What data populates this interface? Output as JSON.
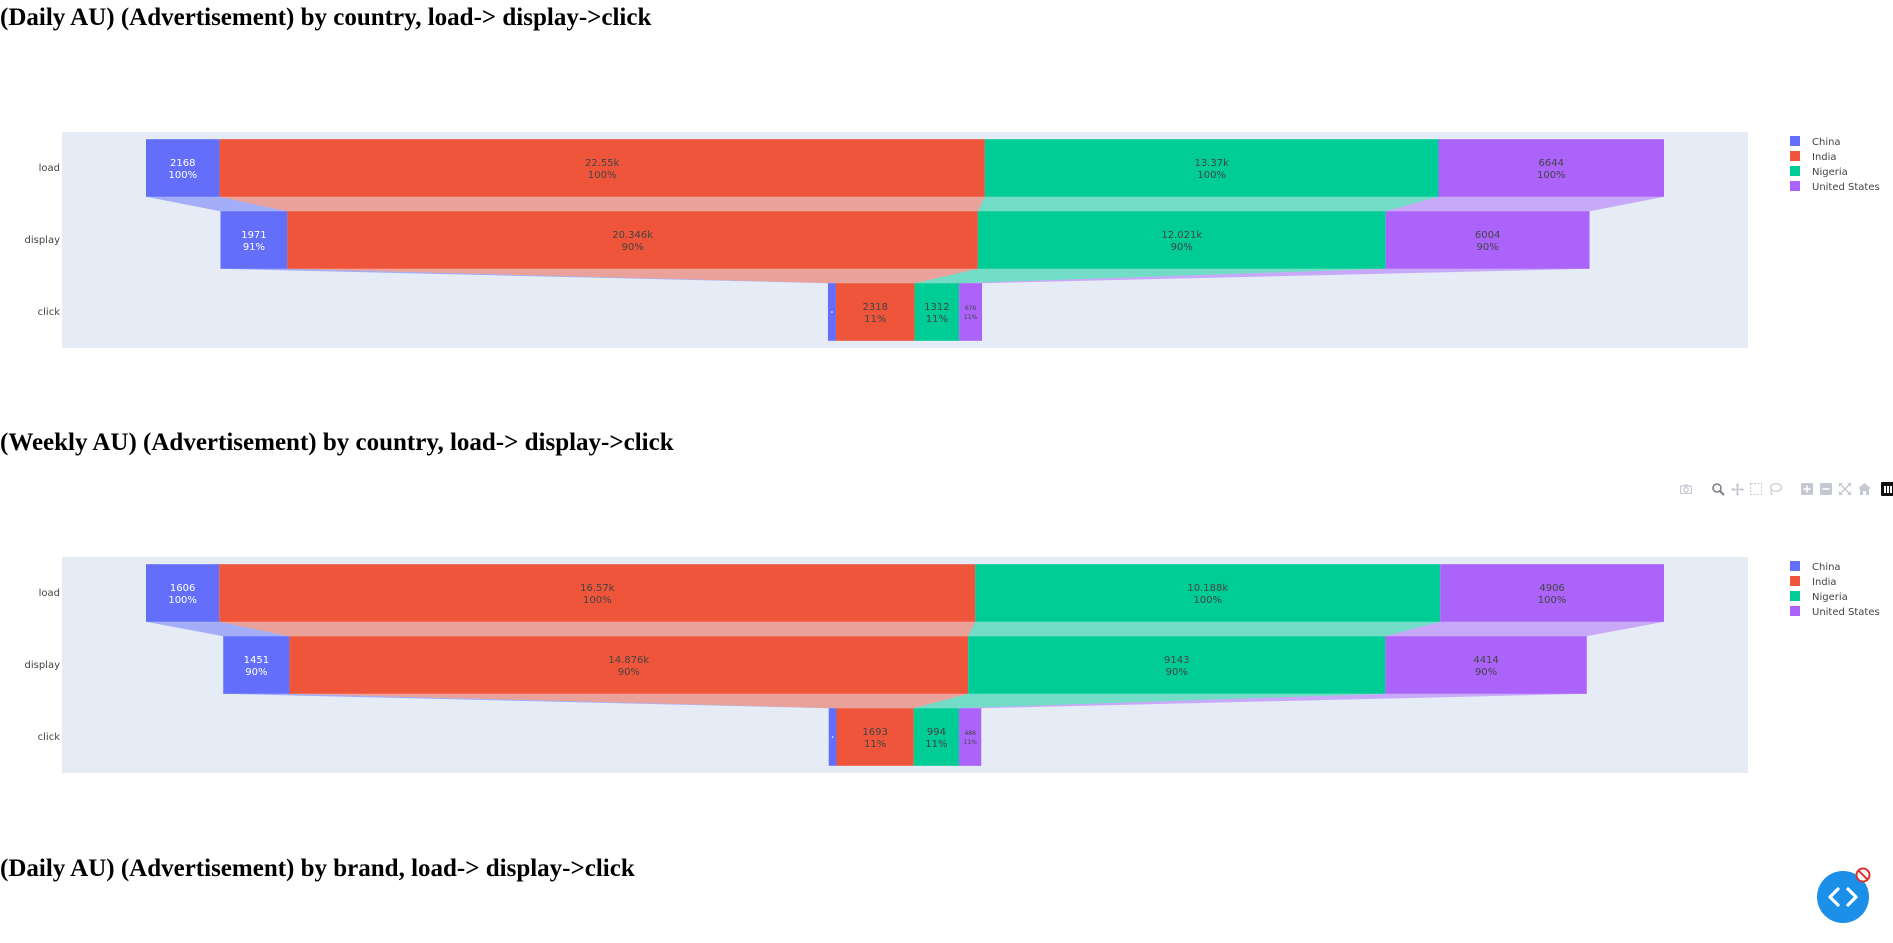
{
  "titles": {
    "daily_country": "(Daily AU) (Advertisement) by country, load-> display->click",
    "weekly_country": "(Weekly AU) (Advertisement) by country, load-> display->click",
    "daily_brand": "(Daily AU) (Advertisement) by brand, load-> display->click"
  },
  "colors": {
    "China": "#636efa",
    "India": "#ef553b",
    "Nigeria": "#00cc96",
    "United States": "#ab63fa",
    "plot_bg": "#e5ecf6"
  },
  "modebar_icons": [
    "camera-icon",
    "zoom-icon",
    "pan-icon",
    "box-select-icon",
    "lasso-icon",
    "zoom-in-icon",
    "zoom-out-icon",
    "autoscale-icon",
    "reset-axes-icon",
    "plotly-logo-icon"
  ],
  "floating_button_icon": "code-icon",
  "chart_data": [
    {
      "type": "funnel",
      "stages": [
        "load",
        "display",
        "click"
      ],
      "legend_position": "top-right",
      "series": [
        {
          "name": "China",
          "values": [
            2168,
            1971,
            236
          ],
          "text": [
            "2168",
            "1971",
            ""
          ],
          "pct": [
            "100%",
            "91%",
            ""
          ]
        },
        {
          "name": "India",
          "values": [
            22550,
            20346,
            2318
          ],
          "text": [
            "22.55k",
            "20.346k",
            "2318"
          ],
          "pct": [
            "100%",
            "90%",
            "11%"
          ]
        },
        {
          "name": "Nigeria",
          "values": [
            13370,
            12021,
            1312
          ],
          "text": [
            "13.37k",
            "12.021k",
            "1312"
          ],
          "pct": [
            "100%",
            "90%",
            "11%"
          ]
        },
        {
          "name": "United States",
          "values": [
            6644,
            6004,
            676
          ],
          "text": [
            "6644",
            "6004",
            "676"
          ],
          "pct": [
            "100%",
            "90%",
            "11%"
          ]
        }
      ]
    },
    {
      "type": "funnel",
      "stages": [
        "load",
        "display",
        "click"
      ],
      "legend_position": "top-right",
      "series": [
        {
          "name": "China",
          "values": [
            1606,
            1451,
            170
          ],
          "text": [
            "1606",
            "1451",
            ""
          ],
          "pct": [
            "100%",
            "90%",
            ""
          ]
        },
        {
          "name": "India",
          "values": [
            16570,
            14876,
            1693
          ],
          "text": [
            "16.57k",
            "14.876k",
            "1693"
          ],
          "pct": [
            "100%",
            "90%",
            "11%"
          ]
        },
        {
          "name": "Nigeria",
          "values": [
            10188,
            9143,
            994
          ],
          "text": [
            "10.188k",
            "9143",
            "994"
          ],
          "pct": [
            "100%",
            "90%",
            "11%"
          ]
        },
        {
          "name": "United States",
          "values": [
            4906,
            4414,
            486
          ],
          "text": [
            "4906",
            "4414",
            "486"
          ],
          "pct": [
            "100%",
            "90%",
            "11%"
          ]
        }
      ]
    }
  ]
}
